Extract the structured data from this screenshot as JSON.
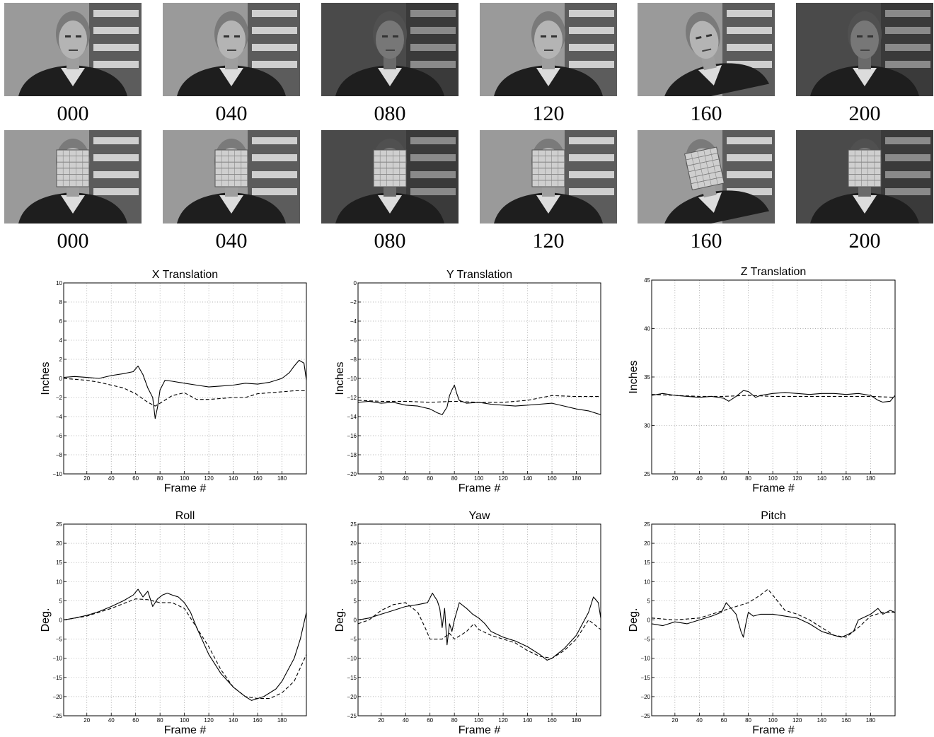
{
  "frames": {
    "row1": [
      "000",
      "040",
      "080",
      "120",
      "160",
      "200"
    ],
    "row2": [
      "000",
      "040",
      "080",
      "120",
      "160",
      "200"
    ]
  },
  "chart_data": [
    {
      "type": "line",
      "title": "X Translation",
      "xlabel": "Frame #",
      "ylabel": "Inches",
      "xlim": [
        1,
        200
      ],
      "ylim": [
        -10,
        10
      ],
      "xticks": [
        20,
        40,
        60,
        80,
        100,
        120,
        140,
        160,
        180
      ],
      "yticks": [
        -10,
        -8,
        -6,
        -4,
        -2,
        0,
        2,
        4,
        6,
        8,
        10
      ],
      "grid": true,
      "series": [
        {
          "style": "solid",
          "x": [
            1,
            10,
            20,
            30,
            40,
            50,
            58,
            62,
            66,
            70,
            74,
            76,
            78,
            80,
            84,
            90,
            100,
            110,
            120,
            130,
            140,
            150,
            160,
            170,
            180,
            186,
            190,
            194,
            198,
            200
          ],
          "y": [
            0.1,
            0.2,
            0.1,
            0.0,
            0.3,
            0.5,
            0.7,
            1.3,
            0.4,
            -1.0,
            -2.0,
            -4.2,
            -3.0,
            -1.2,
            -0.2,
            -0.3,
            -0.5,
            -0.7,
            -0.9,
            -0.8,
            -0.7,
            -0.5,
            -0.6,
            -0.4,
            0.0,
            0.6,
            1.3,
            1.9,
            1.6,
            -0.2
          ]
        },
        {
          "style": "dashed",
          "x": [
            1,
            20,
            30,
            40,
            50,
            60,
            70,
            76,
            80,
            90,
            100,
            110,
            120,
            130,
            140,
            150,
            160,
            170,
            180,
            190,
            200
          ],
          "y": [
            0.0,
            -0.2,
            -0.4,
            -0.7,
            -1.0,
            -1.6,
            -2.5,
            -2.9,
            -2.6,
            -1.8,
            -1.5,
            -2.2,
            -2.2,
            -2.1,
            -2.0,
            -2.0,
            -1.6,
            -1.5,
            -1.4,
            -1.3,
            -1.3
          ]
        }
      ]
    },
    {
      "type": "line",
      "title": "Y Translation",
      "xlabel": "Frame #",
      "ylabel": "Inches",
      "xlim": [
        1,
        200
      ],
      "ylim": [
        -20,
        0
      ],
      "xticks": [
        20,
        40,
        60,
        80,
        100,
        120,
        140,
        160,
        180
      ],
      "yticks": [
        -20,
        -18,
        -16,
        -14,
        -12,
        -10,
        -8,
        -6,
        -4,
        -2,
        0
      ],
      "grid": true,
      "series": [
        {
          "style": "solid",
          "x": [
            1,
            10,
            20,
            30,
            40,
            50,
            60,
            66,
            70,
            74,
            76,
            78,
            80,
            82,
            84,
            90,
            100,
            110,
            120,
            130,
            140,
            150,
            160,
            170,
            180,
            190,
            200
          ],
          "y": [
            -12.5,
            -12.4,
            -12.6,
            -12.5,
            -12.8,
            -12.9,
            -13.2,
            -13.6,
            -13.8,
            -13.0,
            -11.8,
            -11.2,
            -10.7,
            -11.6,
            -12.3,
            -12.6,
            -12.5,
            -12.7,
            -12.8,
            -12.9,
            -12.8,
            -12.7,
            -12.6,
            -12.9,
            -13.2,
            -13.4,
            -13.8
          ]
        },
        {
          "style": "dashed",
          "x": [
            1,
            20,
            40,
            60,
            80,
            100,
            120,
            140,
            160,
            180,
            200
          ],
          "y": [
            -12.3,
            -12.4,
            -12.4,
            -12.5,
            -12.4,
            -12.5,
            -12.5,
            -12.3,
            -11.8,
            -11.9,
            -11.9
          ]
        }
      ]
    },
    {
      "type": "line",
      "title": "Z Translation",
      "xlabel": "Frame #",
      "ylabel": "Inches",
      "xlim": [
        1,
        200
      ],
      "ylim": [
        25,
        45
      ],
      "xticks": [
        20,
        40,
        60,
        80,
        100,
        120,
        140,
        160,
        180
      ],
      "yticks": [
        25,
        30,
        35,
        40,
        45
      ],
      "grid": true,
      "series": [
        {
          "style": "solid",
          "x": [
            1,
            10,
            20,
            30,
            40,
            50,
            60,
            64,
            70,
            76,
            80,
            86,
            90,
            100,
            110,
            120,
            130,
            140,
            150,
            160,
            170,
            180,
            186,
            190,
            196,
            200
          ],
          "y": [
            33.1,
            33.3,
            33.1,
            33.0,
            32.9,
            33.0,
            32.8,
            32.5,
            33.0,
            33.6,
            33.5,
            32.9,
            33.1,
            33.3,
            33.4,
            33.3,
            33.2,
            33.3,
            33.3,
            33.2,
            33.3,
            33.1,
            32.6,
            32.4,
            32.5,
            33.1
          ]
        },
        {
          "style": "dashed",
          "x": [
            1,
            20,
            40,
            60,
            80,
            100,
            120,
            140,
            160,
            180,
            200
          ],
          "y": [
            33.2,
            33.1,
            33.0,
            33.0,
            33.1,
            33.0,
            33.0,
            33.0,
            33.0,
            33.0,
            32.9
          ]
        }
      ]
    },
    {
      "type": "line",
      "title": "Roll",
      "xlabel": "Frame #",
      "ylabel": "Deg.",
      "xlim": [
        1,
        200
      ],
      "ylim": [
        -25,
        25
      ],
      "xticks": [
        20,
        40,
        60,
        80,
        100,
        120,
        140,
        160,
        180
      ],
      "yticks": [
        -25,
        -20,
        -15,
        -10,
        -5,
        0,
        5,
        10,
        15,
        20,
        25
      ],
      "grid": true,
      "series": [
        {
          "style": "solid",
          "x": [
            1,
            10,
            20,
            30,
            40,
            50,
            58,
            62,
            66,
            70,
            74,
            78,
            82,
            86,
            90,
            95,
            100,
            105,
            110,
            120,
            130,
            140,
            150,
            155,
            160,
            165,
            170,
            175,
            180,
            185,
            190,
            195,
            200
          ],
          "y": [
            0.0,
            0.5,
            1.2,
            2.2,
            3.5,
            5.0,
            6.5,
            8.0,
            6.0,
            7.5,
            3.5,
            5.5,
            6.5,
            7.0,
            6.5,
            6.0,
            4.5,
            2.0,
            -2.0,
            -9.0,
            -14.0,
            -17.5,
            -20.0,
            -21.0,
            -20.5,
            -20.0,
            -19.0,
            -18.0,
            -16.0,
            -13.0,
            -10.0,
            -5.0,
            2.0
          ]
        },
        {
          "style": "dashed",
          "x": [
            1,
            20,
            40,
            60,
            70,
            80,
            90,
            100,
            110,
            120,
            130,
            140,
            150,
            160,
            170,
            180,
            190,
            200
          ],
          "y": [
            0.0,
            1.0,
            3.0,
            5.5,
            5.3,
            4.5,
            4.5,
            3.0,
            -2.0,
            -7.0,
            -13.0,
            -17.5,
            -20.0,
            -20.5,
            -20.5,
            -19.0,
            -16.0,
            -9.0
          ]
        }
      ]
    },
    {
      "type": "line",
      "title": "Yaw",
      "xlabel": "Frame #",
      "ylabel": "Deg.",
      "xlim": [
        1,
        200
      ],
      "ylim": [
        -25,
        25
      ],
      "xticks": [
        20,
        40,
        60,
        80,
        100,
        120,
        140,
        160,
        180
      ],
      "yticks": [
        -25,
        -20,
        -15,
        -10,
        -5,
        0,
        5,
        10,
        15,
        20,
        25
      ],
      "grid": true,
      "series": [
        {
          "style": "solid",
          "x": [
            1,
            10,
            20,
            30,
            40,
            50,
            58,
            62,
            66,
            68,
            70,
            72,
            74,
            76,
            78,
            80,
            84,
            90,
            95,
            100,
            105,
            110,
            120,
            130,
            140,
            150,
            156,
            160,
            170,
            180,
            190,
            194,
            198,
            200
          ],
          "y": [
            0.0,
            0.5,
            1.5,
            2.5,
            3.5,
            4.0,
            4.5,
            7.0,
            5.0,
            3.0,
            -2.0,
            3.0,
            -6.5,
            -1.0,
            -3.0,
            0.0,
            4.5,
            3.0,
            1.5,
            0.5,
            -1.0,
            -3.0,
            -4.5,
            -5.5,
            -7.0,
            -9.0,
            -10.5,
            -10.0,
            -7.5,
            -4.0,
            2.0,
            6.0,
            4.5,
            0.5
          ]
        },
        {
          "style": "dashed",
          "x": [
            1,
            10,
            20,
            30,
            40,
            50,
            56,
            60,
            70,
            76,
            80,
            90,
            96,
            100,
            110,
            120,
            130,
            140,
            150,
            160,
            170,
            180,
            190,
            200
          ],
          "y": [
            -1.0,
            0.0,
            2.5,
            4.0,
            4.5,
            2.0,
            -2.0,
            -5.0,
            -5.0,
            -3.5,
            -5.0,
            -3.0,
            -1.0,
            -2.5,
            -4.0,
            -5.0,
            -6.0,
            -8.0,
            -9.5,
            -10.0,
            -8.0,
            -5.0,
            0.0,
            -2.5
          ]
        }
      ]
    },
    {
      "type": "line",
      "title": "Pitch",
      "xlabel": "Frame #",
      "ylabel": "Deg.",
      "xlim": [
        1,
        200
      ],
      "ylim": [
        -25,
        25
      ],
      "xticks": [
        20,
        40,
        60,
        80,
        100,
        120,
        140,
        160,
        180
      ],
      "yticks": [
        -25,
        -20,
        -15,
        -10,
        -5,
        0,
        5,
        10,
        15,
        20,
        25
      ],
      "grid": true,
      "series": [
        {
          "style": "solid",
          "x": [
            1,
            10,
            20,
            30,
            40,
            50,
            58,
            62,
            66,
            70,
            74,
            76,
            78,
            80,
            84,
            90,
            100,
            110,
            120,
            130,
            140,
            150,
            156,
            160,
            166,
            170,
            180,
            186,
            190,
            196,
            200
          ],
          "y": [
            -1.0,
            -1.5,
            -0.5,
            -1.0,
            0.0,
            1.0,
            2.0,
            4.5,
            3.0,
            1.5,
            -3.0,
            -4.5,
            -1.0,
            2.0,
            1.0,
            1.5,
            1.5,
            1.0,
            0.5,
            -1.0,
            -3.0,
            -4.0,
            -4.5,
            -4.0,
            -3.0,
            0.0,
            1.5,
            3.0,
            1.5,
            2.5,
            2.0
          ]
        },
        {
          "style": "dashed",
          "x": [
            1,
            20,
            40,
            60,
            70,
            80,
            90,
            96,
            100,
            110,
            120,
            130,
            140,
            150,
            160,
            170,
            180,
            190,
            200
          ],
          "y": [
            0.5,
            0.0,
            0.5,
            2.5,
            3.5,
            4.5,
            6.5,
            8.0,
            6.5,
            2.5,
            1.5,
            0.0,
            -2.0,
            -4.0,
            -4.5,
            -2.0,
            1.0,
            2.0,
            2.0
          ]
        }
      ]
    }
  ]
}
